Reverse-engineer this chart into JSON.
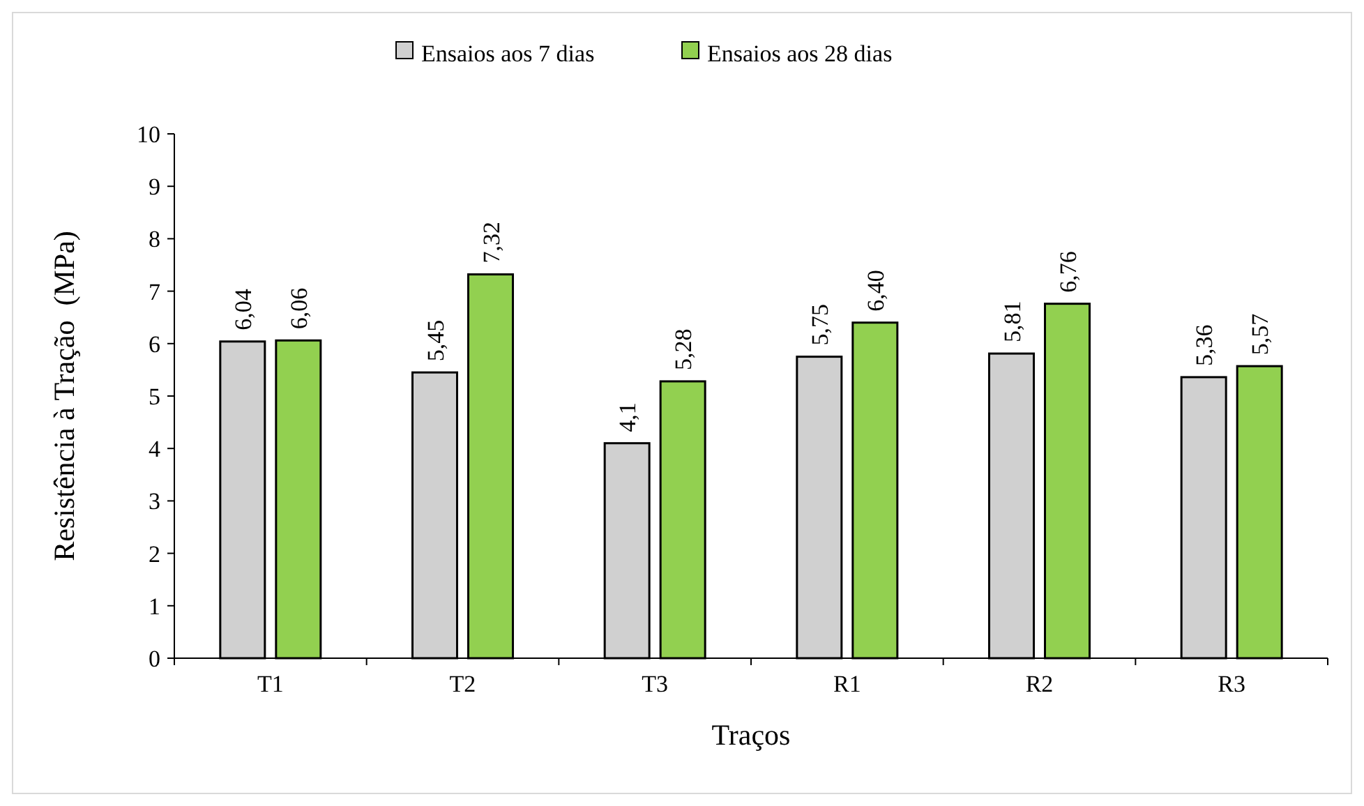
{
  "chart_data": {
    "type": "bar",
    "xlabel": "Traços",
    "ylabel": "Resistência à Tração  (MPa)",
    "categories": [
      "T1",
      "T2",
      "T3",
      "R1",
      "R2",
      "R3"
    ],
    "series": [
      {
        "name": "Ensaios aos 7 dias",
        "color": "#d0d0d0",
        "values": [
          6.04,
          5.45,
          4.1,
          5.75,
          5.81,
          5.36
        ],
        "value_labels": [
          "6,04",
          "5,45",
          "4,1",
          "5,75",
          "5,81",
          "5,36"
        ]
      },
      {
        "name": "Ensaios aos 28 dias",
        "color": "#92d050",
        "values": [
          6.06,
          7.32,
          5.28,
          6.4,
          6.76,
          5.57
        ],
        "value_labels": [
          "6,06",
          "7,32",
          "5,28",
          "6,40",
          "6,76",
          "5,57"
        ]
      }
    ],
    "ylim": [
      0,
      10
    ],
    "yticks": [
      0,
      1,
      2,
      3,
      4,
      5,
      6,
      7,
      8,
      9,
      10
    ],
    "grid": false,
    "legend": "top"
  }
}
